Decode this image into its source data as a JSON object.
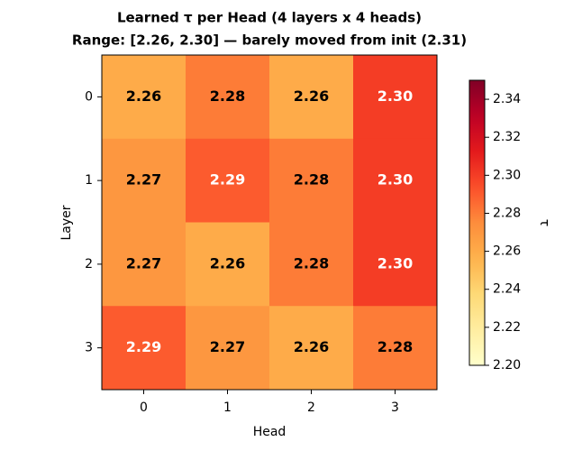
{
  "chart_data": {
    "type": "heatmap",
    "title": "Learned τ per Head (4 layers x 4 heads)",
    "subtitle": "Range: [2.26, 2.30] — barely moved from init (2.31)",
    "x_label": "Head",
    "y_label": "Layer",
    "categories": [
      "0",
      "1",
      "2",
      "3"
    ],
    "y_categories": [
      "0",
      "1",
      "2",
      "3"
    ],
    "values": [
      [
        2.26,
        2.28,
        2.26,
        2.3
      ],
      [
        2.27,
        2.29,
        2.28,
        2.3
      ],
      [
        2.27,
        2.26,
        2.28,
        2.3
      ],
      [
        2.29,
        2.27,
        2.26,
        2.28
      ]
    ],
    "value_labels": [
      [
        "2.26",
        "2.28",
        "2.26",
        "2.30"
      ],
      [
        "2.27",
        "2.29",
        "2.28",
        "2.30"
      ],
      [
        "2.27",
        "2.26",
        "2.28",
        "2.30"
      ],
      [
        "2.29",
        "2.27",
        "2.26",
        "2.28"
      ]
    ],
    "colormap": "YlOrRd",
    "colorbar_label": "τ",
    "clim": [
      2.2,
      2.35
    ],
    "cticks": [
      {
        "value": 2.2,
        "label": "2.20"
      },
      {
        "value": 2.22,
        "label": "2.22"
      },
      {
        "value": 2.24,
        "label": "2.24"
      },
      {
        "value": 2.26,
        "label": "2.26"
      },
      {
        "value": 2.28,
        "label": "2.28"
      },
      {
        "value": 2.3,
        "label": "2.30"
      },
      {
        "value": 2.32,
        "label": "2.32"
      },
      {
        "value": 2.34,
        "label": "2.34"
      }
    ]
  }
}
